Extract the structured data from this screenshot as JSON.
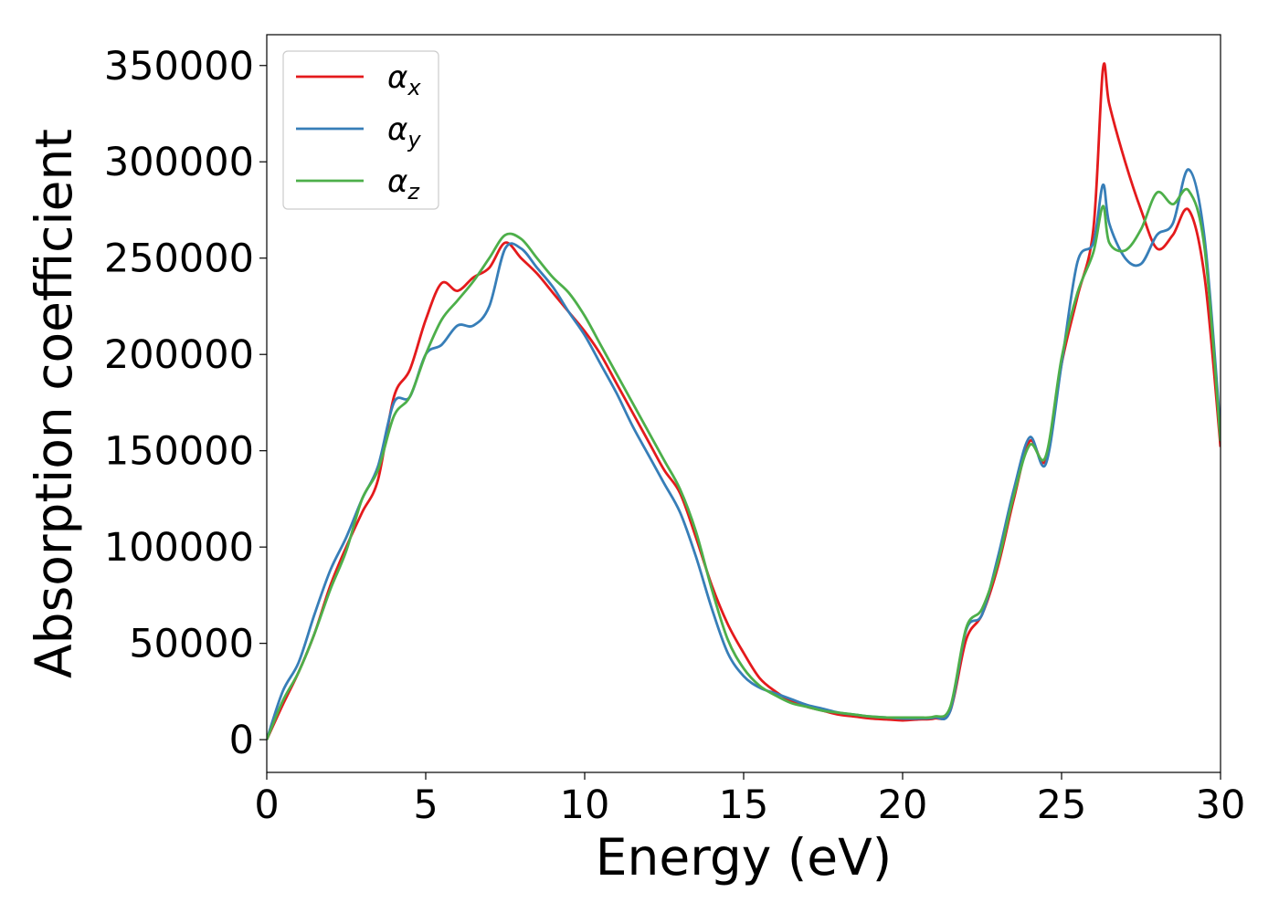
{
  "chart_data": {
    "type": "line",
    "xlabel": "Energy (eV)",
    "ylabel": "Absorption coefficient",
    "xlim": [
      0,
      30
    ],
    "ylim": [
      -17000,
      366000
    ],
    "xticks": [
      0,
      5,
      10,
      15,
      20,
      25,
      30
    ],
    "yticks": [
      0,
      50000,
      100000,
      150000,
      200000,
      250000,
      300000,
      350000
    ],
    "grid": false,
    "legend_position": "top-left",
    "series": [
      {
        "name": "x",
        "color": "#e41a1c",
        "x": [
          0,
          0.5,
          1,
          1.5,
          2,
          2.5,
          3,
          3.5,
          4,
          4.5,
          5,
          5.5,
          6,
          6.5,
          7,
          7.5,
          8,
          8.5,
          9,
          9.5,
          10,
          10.5,
          11,
          11.5,
          12,
          12.5,
          13,
          13.5,
          14,
          14.5,
          15,
          15.5,
          16,
          16.5,
          17,
          17.5,
          18,
          18.5,
          19,
          19.5,
          20,
          20.5,
          21,
          21.5,
          22,
          22.5,
          23,
          23.5,
          24,
          24.5,
          25,
          25.5,
          26,
          26.3,
          26.5,
          27,
          27.5,
          28,
          28.5,
          29,
          29.5,
          30
        ],
        "y": [
          0,
          18000,
          35000,
          55000,
          80000,
          100000,
          118000,
          135000,
          178000,
          192000,
          218000,
          237000,
          233000,
          240000,
          245000,
          258000,
          250000,
          242000,
          232000,
          222000,
          212000,
          200000,
          185000,
          170000,
          155000,
          140000,
          128000,
          105000,
          80000,
          60000,
          45000,
          32000,
          25000,
          20000,
          17000,
          15000,
          13000,
          12000,
          11000,
          10500,
          10000,
          10500,
          11000,
          15000,
          52000,
          65000,
          90000,
          125000,
          155000,
          145000,
          195000,
          230000,
          265000,
          348000,
          330000,
          300000,
          275000,
          255000,
          262000,
          275000,
          240000,
          152000
        ]
      },
      {
        "name": "y",
        "color": "#377eb8",
        "x": [
          0,
          0.5,
          1,
          1.5,
          2,
          2.5,
          3,
          3.5,
          4,
          4.5,
          5,
          5.5,
          6,
          6.5,
          7,
          7.5,
          8,
          8.5,
          9,
          9.5,
          10,
          10.5,
          11,
          11.5,
          12,
          12.5,
          13,
          13.5,
          14,
          14.5,
          15,
          15.5,
          16,
          16.5,
          17,
          17.5,
          18,
          18.5,
          19,
          19.5,
          20,
          20.5,
          21,
          21.5,
          22,
          22.5,
          23,
          23.5,
          24,
          24.5,
          25,
          25.5,
          26,
          26.3,
          26.5,
          27,
          27.5,
          28,
          28.5,
          29,
          29.5,
          30
        ],
        "y": [
          0,
          25000,
          40000,
          65000,
          88000,
          105000,
          125000,
          142000,
          175000,
          178000,
          200000,
          205000,
          215000,
          215000,
          225000,
          255000,
          255000,
          245000,
          235000,
          222000,
          210000,
          195000,
          180000,
          163000,
          148000,
          133000,
          118000,
          95000,
          68000,
          45000,
          33000,
          27000,
          24000,
          21000,
          18000,
          16000,
          14000,
          13000,
          12000,
          11500,
          11000,
          11000,
          11500,
          15000,
          57000,
          65000,
          95000,
          130000,
          157000,
          143000,
          195000,
          248000,
          258000,
          288000,
          268000,
          250000,
          247000,
          262000,
          268000,
          296000,
          260000,
          160000
        ]
      },
      {
        "name": "z",
        "color": "#4daf4a",
        "x": [
          0,
          0.5,
          1,
          1.5,
          2,
          2.5,
          3,
          3.5,
          4,
          4.5,
          5,
          5.5,
          6,
          6.5,
          7,
          7.5,
          8,
          8.5,
          9,
          9.5,
          10,
          10.5,
          11,
          11.5,
          12,
          12.5,
          13,
          13.5,
          14,
          14.5,
          15,
          15.5,
          16,
          16.5,
          17,
          17.5,
          18,
          18.5,
          19,
          19.5,
          20,
          20.5,
          21,
          21.5,
          22,
          22.5,
          23,
          23.5,
          24,
          24.5,
          25,
          25.5,
          26,
          26.3,
          26.5,
          27,
          27.5,
          28,
          28.5,
          29,
          29.5,
          30
        ],
        "y": [
          0,
          20000,
          35000,
          55000,
          78000,
          98000,
          125000,
          140000,
          168000,
          178000,
          200000,
          218000,
          228000,
          238000,
          250000,
          262000,
          260000,
          250000,
          240000,
          232000,
          220000,
          205000,
          190000,
          175000,
          160000,
          145000,
          130000,
          108000,
          78000,
          52000,
          37000,
          28000,
          23000,
          19000,
          17000,
          15000,
          14000,
          13000,
          12000,
          11500,
          11500,
          11500,
          12000,
          17000,
          58000,
          68000,
          92000,
          127000,
          153000,
          147000,
          198000,
          232000,
          253000,
          277000,
          258000,
          254000,
          265000,
          284000,
          278000,
          285000,
          255000,
          155000
        ]
      }
    ]
  }
}
